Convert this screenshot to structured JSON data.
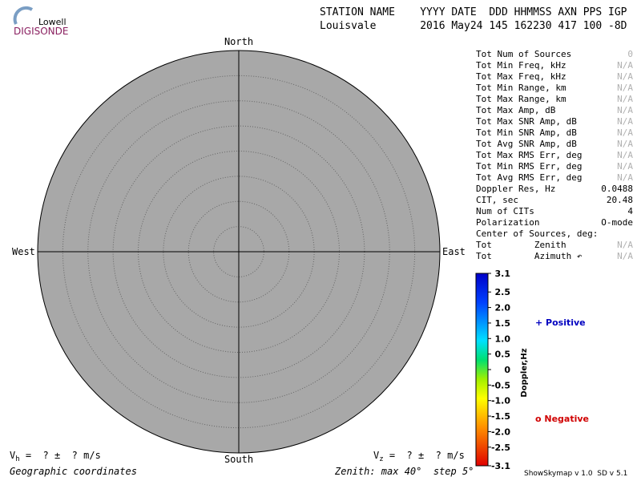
{
  "header": {
    "logo_top": "Lowell",
    "logo_bottom": "DIGISONDE",
    "labels": "STATION NAME    YYYY DATE  DDD HHMMSS AXN PPS IGP",
    "values": "Louisvale       2016 May24 145 162230 417 100 -8D"
  },
  "compass": {
    "north": "North",
    "south": "South",
    "east": "East",
    "west": "West"
  },
  "stats": {
    "rows": [
      {
        "label": "Tot Num of Sources",
        "value": "0",
        "dim": true
      },
      {
        "label": "Tot Min Freq, kHz",
        "value": "N/A",
        "dim": true
      },
      {
        "label": "Tot Max Freq, kHz",
        "value": "N/A",
        "dim": true
      },
      {
        "label": "Tot Min Range, km",
        "value": "N/A",
        "dim": true
      },
      {
        "label": "Tot Max Range, km",
        "value": "N/A",
        "dim": true
      },
      {
        "label": "Tot Max Amp, dB",
        "value": "N/A",
        "dim": true
      },
      {
        "label": "Tot Max SNR Amp, dB",
        "value": "N/A",
        "dim": true
      },
      {
        "label": "Tot Min SNR Amp, dB",
        "value": "N/A",
        "dim": true
      },
      {
        "label": "Tot Avg SNR Amp, dB",
        "value": "N/A",
        "dim": true
      },
      {
        "label": "Tot Max RMS Err, deg",
        "value": "N/A",
        "dim": true
      },
      {
        "label": "Tot Min RMS Err, deg",
        "value": "N/A",
        "dim": true
      },
      {
        "label": "Tot Avg RMS Err, deg",
        "value": "N/A",
        "dim": true
      },
      {
        "label": "Doppler Res, Hz",
        "value": "0.0488",
        "dim": false
      },
      {
        "label": "CIT, sec",
        "value": "20.48",
        "dim": false
      },
      {
        "label": "Num of CITs",
        "value": "4",
        "dim": false
      },
      {
        "label": "Polarization",
        "value": "O-mode",
        "dim": false
      },
      {
        "label": "Center of Sources, deg:",
        "value": "",
        "dim": false
      },
      {
        "label": "Tot        Zenith",
        "value": "N/A",
        "dim": true
      },
      {
        "label": "Tot        Azimuth ↶",
        "value": "N/A",
        "dim": true
      }
    ]
  },
  "colorbar": {
    "title": "Doppler,Hz",
    "ticks": [
      "3.1",
      "2.5",
      "2.0",
      "1.5",
      "1.0",
      "0.5",
      "0",
      "-0.5",
      "-1.0",
      "-1.5",
      "-2.0",
      "-2.5",
      "-3.1"
    ]
  },
  "legend": {
    "positive": "+ Positive",
    "negative": "o Negative"
  },
  "footer": {
    "vh_symbol": "V",
    "vh_sub": "h",
    "vh_rest": " =  ? ±  ? m/s",
    "vz_symbol": "V",
    "vz_sub": "z",
    "vz_rest": " =  ? ±  ? m/s",
    "coords": "Geographic coordinates",
    "zenith": "Zenith: max 40°  step 5°",
    "version": "ShowSkymap v 1.0  SD v 5.1"
  }
}
